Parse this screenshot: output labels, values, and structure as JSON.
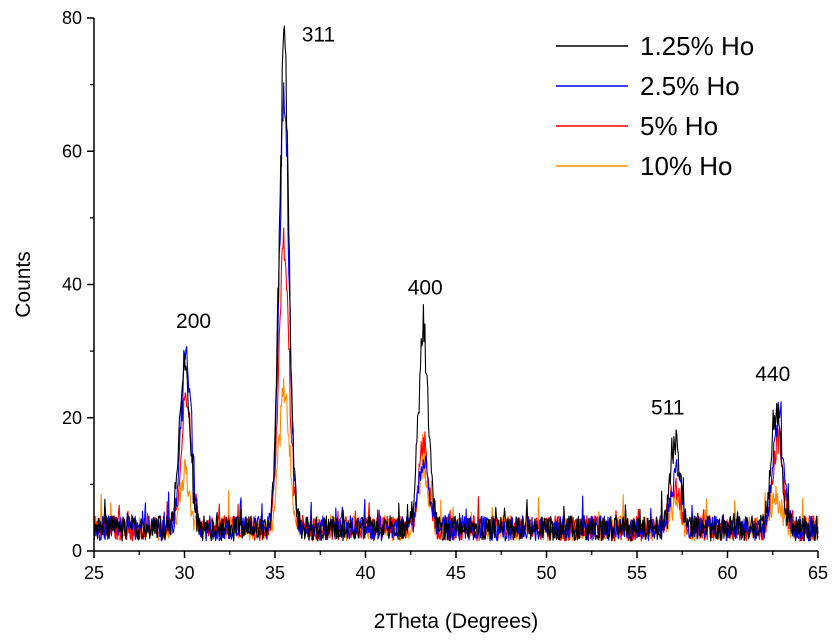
{
  "chart_data": {
    "type": "line",
    "title": "",
    "xlabel": "2Theta (Degrees)",
    "ylabel": "Counts",
    "xlim": [
      25,
      65
    ],
    "ylim": [
      0,
      80
    ],
    "x_ticks": [
      25,
      30,
      35,
      40,
      45,
      50,
      55,
      60,
      65
    ],
    "y_ticks": [
      0,
      20,
      40,
      60,
      80
    ],
    "grid": false,
    "legend_position": "top-right",
    "series": [
      {
        "name": "1.25% Ho",
        "color": "#000000",
        "peaks": [
          {
            "x": 30.0,
            "y": 31
          },
          {
            "x": 35.5,
            "y": 80
          },
          {
            "x": 43.2,
            "y": 35
          },
          {
            "x": 57.1,
            "y": 17
          },
          {
            "x": 62.7,
            "y": 23
          }
        ]
      },
      {
        "name": "2.5% Ho",
        "color": "#0000ff",
        "peaks": [
          {
            "x": 30.1,
            "y": 32
          },
          {
            "x": 35.5,
            "y": 72
          },
          {
            "x": 43.2,
            "y": 14
          },
          {
            "x": 57.2,
            "y": 13
          },
          {
            "x": 62.8,
            "y": 22
          }
        ]
      },
      {
        "name": "5% Ho",
        "color": "#ff0000",
        "peaks": [
          {
            "x": 30.1,
            "y": 24
          },
          {
            "x": 35.5,
            "y": 49
          },
          {
            "x": 43.2,
            "y": 16
          },
          {
            "x": 57.1,
            "y": 10
          },
          {
            "x": 62.8,
            "y": 18
          }
        ]
      },
      {
        "name": "10% Ho",
        "color": "#ff8c00",
        "peaks": [
          {
            "x": 30.0,
            "y": 12
          },
          {
            "x": 35.5,
            "y": 26
          },
          {
            "x": 43.2,
            "y": 13
          },
          {
            "x": 57.1,
            "y": 7
          },
          {
            "x": 62.7,
            "y": 8
          }
        ]
      }
    ],
    "annotations": [
      {
        "text": "200",
        "x": 30.5,
        "y": 33.5
      },
      {
        "text": "311",
        "x": 37.4,
        "y": 76.5
      },
      {
        "text": "400",
        "x": 43.3,
        "y": 38.5
      },
      {
        "text": "511",
        "x": 56.7,
        "y": 20.5
      },
      {
        "text": "440",
        "x": 62.5,
        "y": 25.5
      }
    ]
  }
}
